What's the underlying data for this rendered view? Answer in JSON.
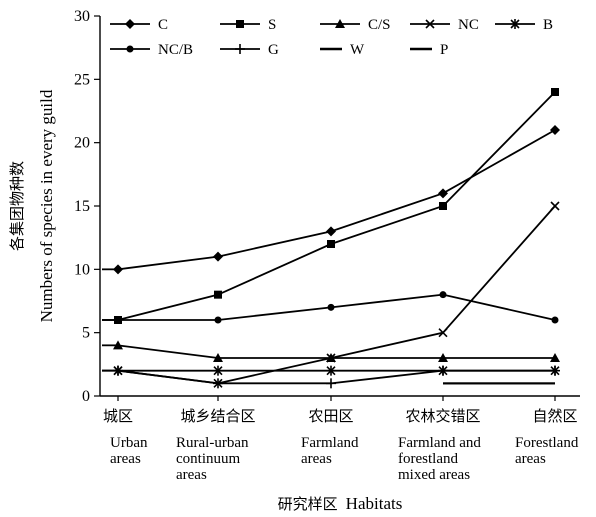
{
  "chart_data": {
    "type": "line",
    "ylabel_zh": "各集团物种数",
    "ylabel": "Numbers of species in every guild",
    "xlabel_zh": "研究样区",
    "xlabel": "Habitats",
    "ylim": [
      0,
      30
    ],
    "yticks": [
      0,
      5,
      10,
      15,
      20,
      25,
      30
    ],
    "ytick_labels": [
      "0",
      "5",
      "10",
      "15",
      "20",
      "25",
      "30"
    ],
    "categories": [
      {
        "zh": "城区",
        "en": [
          "Urban",
          "areas"
        ]
      },
      {
        "zh": "城乡结合区",
        "en": [
          "Rural-urban",
          "continuum",
          "areas"
        ]
      },
      {
        "zh": "农田区",
        "en": [
          "Farmland",
          "areas"
        ]
      },
      {
        "zh": "农林交错区",
        "en": [
          "Farmland and",
          "forestland",
          "mixed areas"
        ]
      },
      {
        "zh": "自然区",
        "en": [
          "Forestland",
          "areas"
        ]
      }
    ],
    "series": [
      {
        "name": "C",
        "marker": "diamond",
        "values": [
          10,
          11,
          13,
          16,
          21
        ]
      },
      {
        "name": "S",
        "marker": "square",
        "values": [
          6,
          8,
          12,
          15,
          24
        ]
      },
      {
        "name": "C/S",
        "marker": "triangle",
        "values": [
          4,
          3,
          3,
          3,
          3
        ]
      },
      {
        "name": "NC",
        "marker": "x",
        "values": [
          2,
          1,
          3,
          5,
          15
        ]
      },
      {
        "name": "B",
        "marker": "star",
        "values": [
          2,
          2,
          2,
          2,
          2
        ]
      },
      {
        "name": "NC/B",
        "marker": "circle",
        "values": [
          6,
          6,
          7,
          8,
          6
        ]
      },
      {
        "name": "G",
        "marker": "plus",
        "values": [
          2,
          1,
          1,
          2,
          2
        ]
      },
      {
        "name": "W",
        "marker": "dash",
        "values": [
          null,
          null,
          null,
          1,
          1
        ]
      },
      {
        "name": "P",
        "marker": "dash",
        "values": [
          null,
          null,
          null,
          1,
          1
        ]
      }
    ],
    "legend": "top",
    "grid": false,
    "line_color": "#000000"
  }
}
